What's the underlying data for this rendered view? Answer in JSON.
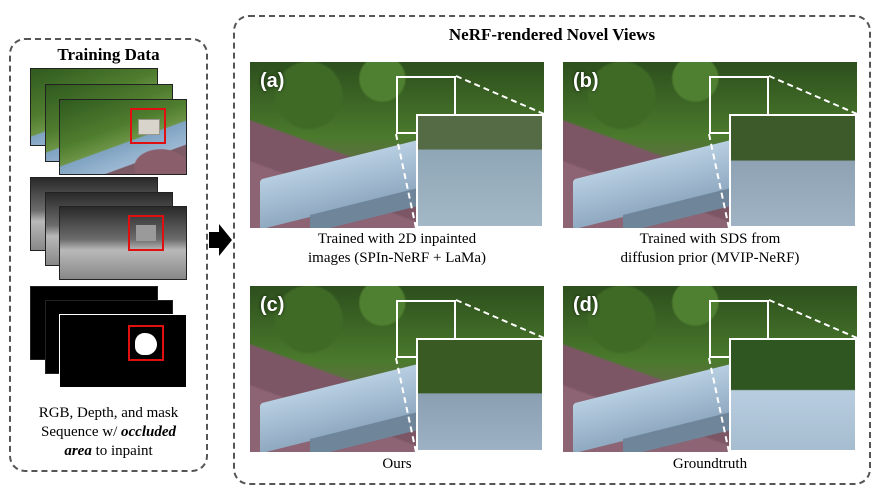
{
  "training": {
    "title": "Training Data",
    "caption_line1": "RGB, Depth, and mask",
    "caption_line2_pre": "Sequence w/ ",
    "caption_line2_emph": "occluded",
    "caption_line3_emph": "area",
    "caption_line3_post": " to inpaint"
  },
  "novel_views": {
    "title": "NeRF-rendered Novel Views",
    "panels": [
      {
        "label": "(a)",
        "caption_line1": "Trained with 2D inpainted",
        "caption_line2": "images (SPIn-NeRF + LaMa)"
      },
      {
        "label": "(b)",
        "caption_line1": "Trained with SDS from",
        "caption_line2": "diffusion prior (MVIP-NeRF)"
      },
      {
        "label": "(c)",
        "caption_line1": "Ours",
        "caption_line2": ""
      },
      {
        "label": "(d)",
        "caption_line1": "Groundtruth",
        "caption_line2": ""
      }
    ]
  },
  "colors": {
    "dash": "#555555",
    "highlight": "#e01010",
    "arrow": "#000000"
  }
}
